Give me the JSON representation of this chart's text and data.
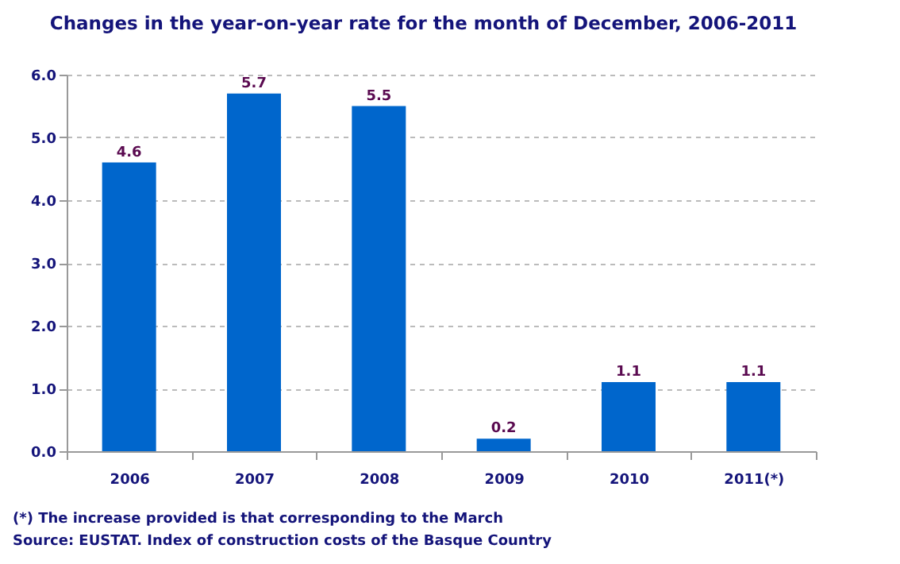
{
  "chart_data": {
    "type": "bar",
    "title": "Changes in the year-on-year rate for the month of December, 2006-2011",
    "categories": [
      "2006",
      "2007",
      "2008",
      "2009",
      "2010",
      "2011(*)"
    ],
    "values": [
      4.6,
      5.7,
      5.5,
      0.2,
      1.1,
      1.1
    ],
    "color": "#0066cc",
    "ylim": [
      0,
      6
    ],
    "yticks": [
      {
        "value": 0,
        "label": "0.0"
      },
      {
        "value": 1,
        "label": "1.0"
      },
      {
        "value": 2,
        "label": "2.0"
      },
      {
        "value": 3,
        "label": "3.0"
      },
      {
        "value": 4,
        "label": "4.0"
      },
      {
        "value": 5,
        "label": "5.0"
      },
      {
        "value": 6,
        "label": "6.0"
      }
    ],
    "grid": "y",
    "data_labels": true,
    "annotations": [
      "(*) The increase provided is that corresponding to the March",
      "Source: EUSTAT. Index of construction costs of the Basque Country"
    ]
  }
}
